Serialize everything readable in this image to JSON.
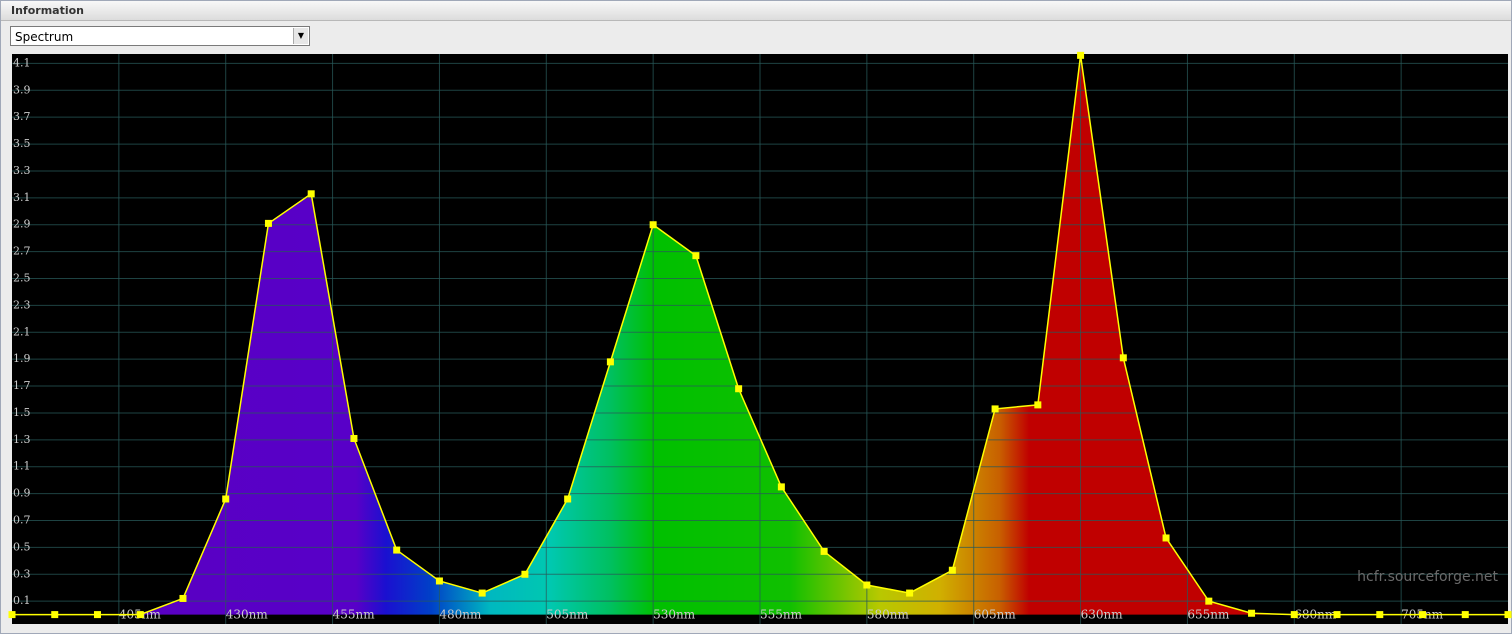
{
  "panel": {
    "title": "Information",
    "dropdown": "Spectrum"
  },
  "watermark": "hcfr.sourceforge.net",
  "chart_data": {
    "type": "area",
    "x": [
      380,
      390,
      400,
      410,
      420,
      430,
      440,
      450,
      460,
      470,
      480,
      490,
      500,
      510,
      520,
      530,
      540,
      550,
      560,
      570,
      580,
      590,
      600,
      610,
      620,
      630,
      640,
      650,
      660,
      670,
      680,
      690,
      700,
      710,
      720,
      730
    ],
    "values": [
      0,
      0,
      0,
      0,
      0.12,
      0.86,
      2.91,
      3.13,
      1.31,
      0.48,
      0.25,
      0.16,
      0.3,
      0.86,
      1.88,
      2.9,
      2.67,
      1.68,
      0.95,
      0.47,
      0.22,
      0.16,
      0.33,
      1.53,
      1.56,
      4.16,
      1.91,
      0.57,
      0.1,
      0.01,
      0,
      0,
      0,
      0,
      0,
      0
    ],
    "color": "#ffff00",
    "xlim": [
      380,
      730
    ],
    "ylim": [
      -0.07,
      4.17
    ],
    "xticks": [
      {
        "value": 405,
        "label": "405nm"
      },
      {
        "value": 430,
        "label": "430nm"
      },
      {
        "value": 455,
        "label": "455nm"
      },
      {
        "value": 480,
        "label": "480nm"
      },
      {
        "value": 505,
        "label": "505nm"
      },
      {
        "value": 530,
        "label": "530nm"
      },
      {
        "value": 555,
        "label": "555nm"
      },
      {
        "value": 580,
        "label": "580nm"
      },
      {
        "value": 605,
        "label": "605nm"
      },
      {
        "value": 630,
        "label": "630nm"
      },
      {
        "value": 655,
        "label": "655nm"
      },
      {
        "value": 680,
        "label": "680nm"
      },
      {
        "value": 705,
        "label": "705nm"
      }
    ],
    "yticks": [
      0.1,
      0.3,
      0.5,
      0.7,
      0.9,
      1.1,
      1.3,
      1.5,
      1.7,
      1.9,
      2.1,
      2.3,
      2.5,
      2.7,
      2.9,
      3.1,
      3.3,
      3.5,
      3.7,
      3.9,
      4.1
    ],
    "grid": true
  }
}
